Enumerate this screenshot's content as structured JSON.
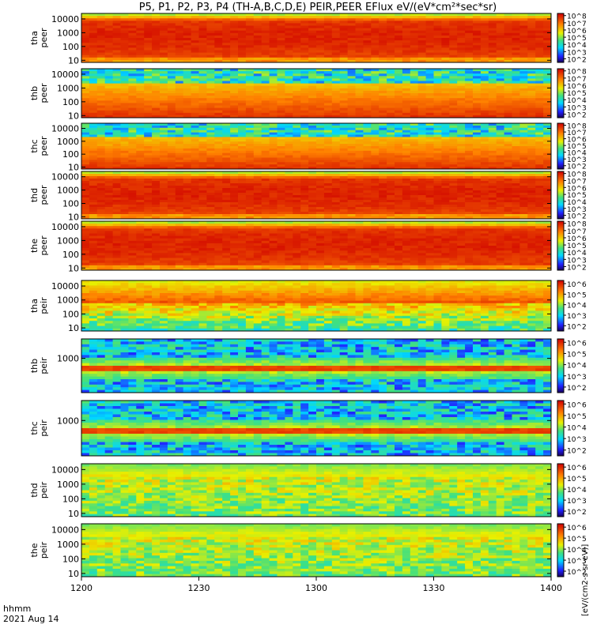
{
  "title": "P5, P1, P2, P3, P4 (TH-A,B,C,D,E) PEIR,PEER EFlux eV/(eV*cm²*sec*sr)",
  "time_axis": {
    "label_line1": "hhmm",
    "label_line2": "2021 Aug 14",
    "ticks": [
      "1200",
      "1230",
      "1300",
      "1330",
      "1400"
    ]
  },
  "colorbar_unit_label": "[eV/(cm2-s-sr-eV)]",
  "chart_data": [
    {
      "type": "heatmap",
      "ylabel_line1": "tha",
      "ylabel_line2": "peer",
      "yscale": "log",
      "y_ticks": [
        "10000",
        "1000",
        "100",
        "10"
      ],
      "ylim": [
        7,
        25000
      ],
      "cbar_ticks": [
        "10^8",
        "10^7",
        "10^6",
        "10^5",
        "10^4",
        "10^3",
        "10^2"
      ],
      "cbar_log_range": [
        1.5,
        8.3
      ],
      "pattern": "electron-saturated"
    },
    {
      "type": "heatmap",
      "ylabel_line1": "thb",
      "ylabel_line2": "peer",
      "yscale": "log",
      "y_ticks": [
        "10000",
        "1000",
        "100",
        "10"
      ],
      "ylim": [
        7,
        25000
      ],
      "cbar_ticks": [
        "10^8",
        "10^7",
        "10^6",
        "10^5",
        "10^4",
        "10^3",
        "10^2"
      ],
      "cbar_log_range": [
        1.5,
        8.3
      ],
      "pattern": "electron-noisy-top"
    },
    {
      "type": "heatmap",
      "ylabel_line1": "thc",
      "ylabel_line2": "peer",
      "yscale": "log",
      "y_ticks": [
        "10000",
        "1000",
        "100",
        "10"
      ],
      "ylim": [
        7,
        25000
      ],
      "cbar_ticks": [
        "10^8",
        "10^7",
        "10^6",
        "10^5",
        "10^4",
        "10^3",
        "10^2"
      ],
      "cbar_log_range": [
        1.5,
        8.3
      ],
      "pattern": "electron-noisy-top"
    },
    {
      "type": "heatmap",
      "ylabel_line1": "thd",
      "ylabel_line2": "peer",
      "yscale": "log",
      "y_ticks": [
        "10000",
        "1000",
        "100",
        "10"
      ],
      "ylim": [
        7,
        25000
      ],
      "cbar_ticks": [
        "10^8",
        "10^7",
        "10^6",
        "10^5",
        "10^4",
        "10^3",
        "10^2"
      ],
      "cbar_log_range": [
        1.5,
        8.3
      ],
      "pattern": "electron-saturated"
    },
    {
      "type": "heatmap",
      "ylabel_line1": "the",
      "ylabel_line2": "peer",
      "yscale": "log",
      "y_ticks": [
        "10000",
        "1000",
        "100",
        "10"
      ],
      "ylim": [
        7,
        25000
      ],
      "cbar_ticks": [
        "10^8",
        "10^7",
        "10^6",
        "10^5",
        "10^4",
        "10^3",
        "10^2"
      ],
      "cbar_log_range": [
        1.5,
        8.3
      ],
      "pattern": "electron-saturated"
    },
    {
      "type": "heatmap",
      "ylabel_line1": "tha",
      "ylabel_line2": "peir",
      "yscale": "log",
      "y_ticks": [
        "10000",
        "1000",
        "100",
        "10"
      ],
      "ylim": [
        6,
        25000
      ],
      "cbar_ticks": [
        "10^6",
        "10^5",
        "10^4",
        "10^3",
        "10^2"
      ],
      "cbar_log_range": [
        1.5,
        6.3
      ],
      "pattern": "ion-hot"
    },
    {
      "type": "heatmap",
      "ylabel_line1": "thb",
      "ylabel_line2": "peir",
      "yscale": "log",
      "y_ticks": [
        "1000"
      ],
      "ylim": [
        5,
        20000
      ],
      "cbar_ticks": [
        "10^6",
        "10^5",
        "10^4",
        "10^3",
        "10^2"
      ],
      "cbar_log_range": [
        1.5,
        6.3
      ],
      "pattern": "ion-band"
    },
    {
      "type": "heatmap",
      "ylabel_line1": "thc",
      "ylabel_line2": "peir",
      "yscale": "log",
      "y_ticks": [
        "1000"
      ],
      "ylim": [
        5,
        20000
      ],
      "cbar_ticks": [
        "10^6",
        "10^5",
        "10^4",
        "10^3",
        "10^2"
      ],
      "cbar_log_range": [
        1.5,
        6.3
      ],
      "pattern": "ion-band"
    },
    {
      "type": "heatmap",
      "ylabel_line1": "thd",
      "ylabel_line2": "peir",
      "yscale": "log",
      "y_ticks": [
        "10000",
        "1000",
        "100",
        "10"
      ],
      "ylim": [
        6,
        25000
      ],
      "cbar_ticks": [
        "10^6",
        "10^5",
        "10^4",
        "10^3",
        "10^2"
      ],
      "cbar_log_range": [
        1.5,
        6.3
      ],
      "pattern": "ion-cool"
    },
    {
      "type": "heatmap",
      "ylabel_line1": "the",
      "ylabel_line2": "peir",
      "yscale": "log",
      "y_ticks": [
        "10000",
        "1000",
        "100",
        "10"
      ],
      "ylim": [
        6,
        25000
      ],
      "cbar_ticks": [
        "10^6",
        "10^5",
        "10^4",
        "10^3",
        "10^2"
      ],
      "cbar_log_range": [
        1.5,
        6.3
      ],
      "pattern": "ion-cool"
    }
  ]
}
